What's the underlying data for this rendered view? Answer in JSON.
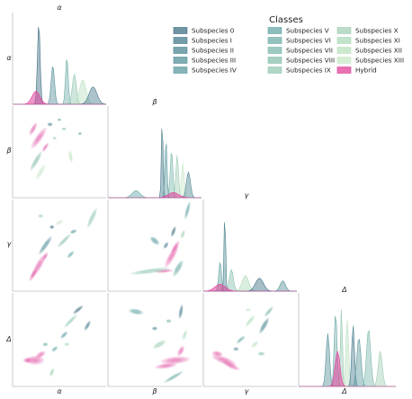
{
  "chart_data": {
    "type": "pairplot",
    "variables": [
      "α",
      "β",
      "γ",
      "Δ"
    ],
    "legend": {
      "title": "Classes",
      "placement": "top-right",
      "entries": [
        {
          "label": "Subspecies 0",
          "color": "#3f6f83"
        },
        {
          "label": "Subspecies I",
          "color": "#467b8b"
        },
        {
          "label": "Subspecies II",
          "color": "#4e8793"
        },
        {
          "label": "Subspecies III",
          "color": "#56909a"
        },
        {
          "label": "Subspecies IV",
          "color": "#5e9aa0"
        },
        {
          "label": "Subspecies V",
          "color": "#66a5a4"
        },
        {
          "label": "Subspecies VI",
          "color": "#70aea8"
        },
        {
          "label": "Subspecies VII",
          "color": "#7cb8ab"
        },
        {
          "label": "Subspecies VIII",
          "color": "#88c0ae"
        },
        {
          "label": "Subspecies IX",
          "color": "#95c8b2"
        },
        {
          "label": "Subspecies X",
          "color": "#a1cfb5"
        },
        {
          "label": "Subspecies XI",
          "color": "#addab9"
        },
        {
          "label": "Subspecies XII",
          "color": "#bbe1c0"
        },
        {
          "label": "Subspecies XIII",
          "color": "#c8e7c8"
        },
        {
          "label": "Hybrid",
          "color": "#e0409a"
        }
      ]
    },
    "grid": false,
    "diagonal": "kde",
    "off_diagonal": "kde"
  }
}
